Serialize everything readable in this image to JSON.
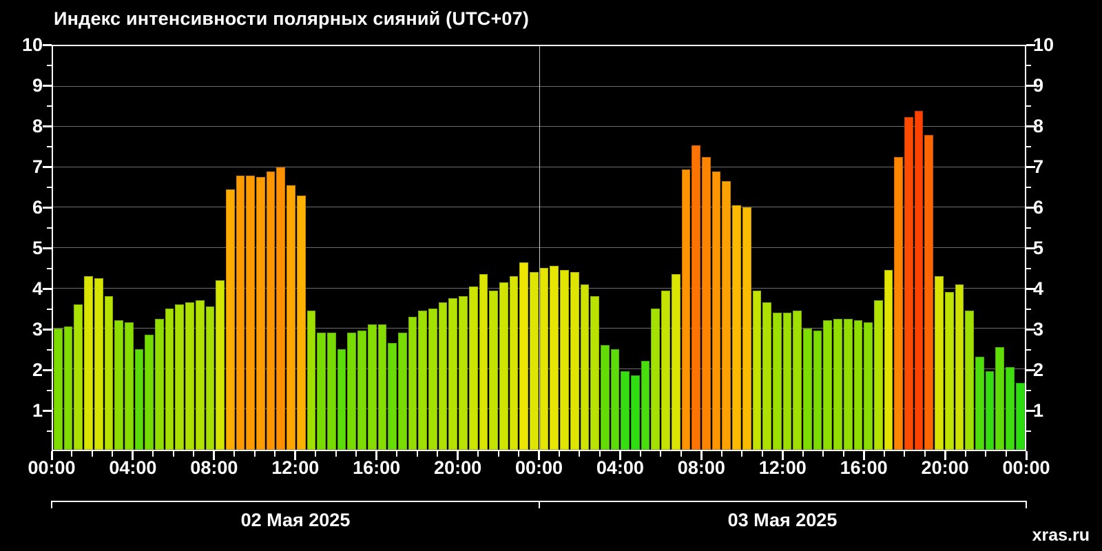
{
  "page": {
    "background": "#000000",
    "text_color": "#ffffff",
    "watermark": "xras.ru"
  },
  "chart_data": {
    "type": "bar",
    "title": "Индекс интенсивности полярных сияний (UTC+07)",
    "timezone": "UTC+07",
    "ylim": [
      0,
      10
    ],
    "y_ticks": [
      1,
      2,
      3,
      4,
      5,
      6,
      7,
      8,
      9,
      10
    ],
    "x_major_tick_labels": [
      "00:00",
      "04:00",
      "08:00",
      "12:00",
      "16:00",
      "20:00",
      "00:00",
      "04:00",
      "08:00",
      "12:00",
      "16:00",
      "20:00",
      "00:00"
    ],
    "x_major_tick_hours": [
      0,
      4,
      8,
      12,
      16,
      20,
      24,
      28,
      32,
      36,
      40,
      44,
      48
    ],
    "x_minor_tick_step_hours": 1,
    "total_hours": 48,
    "bin_hours": 0.5,
    "grid": true,
    "day_labels": [
      "02 Мая 2025",
      "03 Мая 2025"
    ],
    "values": [
      3.0,
      3.05,
      3.6,
      4.3,
      4.25,
      3.8,
      3.2,
      3.15,
      2.5,
      2.85,
      3.25,
      3.5,
      3.6,
      3.65,
      3.7,
      3.55,
      4.2,
      6.45,
      6.8,
      6.8,
      6.75,
      6.9,
      7.0,
      6.55,
      6.3,
      3.45,
      2.9,
      2.9,
      2.5,
      2.9,
      2.95,
      3.1,
      3.1,
      2.65,
      2.9,
      3.3,
      3.45,
      3.5,
      3.65,
      3.75,
      3.8,
      4.05,
      4.35,
      3.95,
      4.15,
      4.3,
      4.65,
      4.4,
      4.5,
      4.55,
      4.45,
      4.4,
      4.1,
      3.8,
      2.6,
      2.5,
      1.95,
      1.85,
      2.2,
      3.5,
      3.95,
      4.35,
      6.95,
      7.55,
      7.25,
      6.9,
      6.65,
      6.05,
      6.0,
      3.95,
      3.65,
      3.4,
      3.4,
      3.45,
      3.0,
      2.95,
      3.2,
      3.25,
      3.25,
      3.2,
      3.15,
      3.7,
      4.45,
      7.25,
      8.25,
      8.4,
      7.8,
      4.3,
      3.9,
      4.1,
      3.45,
      2.3,
      1.95,
      2.55,
      2.05,
      1.65
    ],
    "color_scale": {
      "description": "green (low) -> yellow-green -> yellow -> orange (high) -> red (extreme)",
      "stops": [
        {
          "value": 1.8,
          "color": "#2cdd12"
        },
        {
          "value": 3.0,
          "color": "#7fdc00"
        },
        {
          "value": 4.0,
          "color": "#c8e400"
        },
        {
          "value": 4.7,
          "color": "#efe600"
        },
        {
          "value": 6.5,
          "color": "#ffaa00"
        },
        {
          "value": 7.5,
          "color": "#ff7700"
        },
        {
          "value": 8.5,
          "color": "#ff3c00"
        }
      ]
    },
    "grid_color": "#6e6e6e",
    "day_divider_color": "#c9c9c9",
    "axis_color": "#ffffff"
  }
}
